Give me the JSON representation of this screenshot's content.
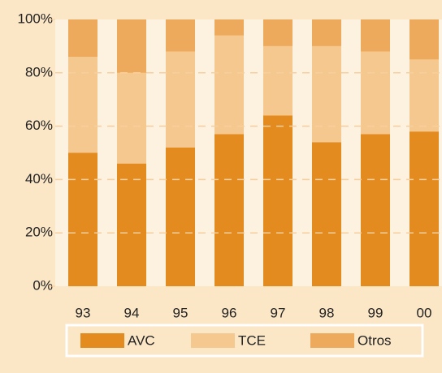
{
  "chart_data": {
    "type": "stacked_bar",
    "categories": [
      "93",
      "94",
      "95",
      "96",
      "97",
      "98",
      "99",
      "00"
    ],
    "series": [
      {
        "name": "AVC",
        "color": "#e38b1f",
        "values": [
          50,
          46,
          52,
          57,
          64,
          54,
          57,
          58
        ]
      },
      {
        "name": "TCE",
        "color": "#f5c88f",
        "values": [
          36,
          34,
          36,
          37,
          26,
          36,
          31,
          27
        ]
      },
      {
        "name": "Otros",
        "color": "#eeaa5c",
        "values": [
          14,
          20,
          12,
          6,
          10,
          10,
          12,
          15
        ]
      }
    ],
    "ylim": [
      0,
      100
    ],
    "yticks": [
      {
        "value": 0,
        "label": "0%"
      },
      {
        "value": 20,
        "label": "20%"
      },
      {
        "value": 40,
        "label": "40%"
      },
      {
        "value": 60,
        "label": "60%"
      },
      {
        "value": 80,
        "label": "80%"
      },
      {
        "value": 100,
        "label": "100%"
      }
    ],
    "grid": true
  }
}
